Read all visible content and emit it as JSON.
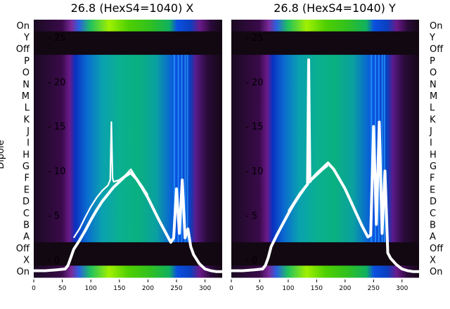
{
  "chart_data": [
    {
      "type": "heatmap",
      "title": "26.8 (HexS4=1040) X",
      "ylabel": "Dipole",
      "xlim": [
        0,
        330
      ],
      "x_ticks": [
        0,
        50,
        100,
        150,
        200,
        250,
        300
      ],
      "y_categories": [
        "On",
        "Y",
        "Off",
        "P",
        "O",
        "N",
        "M",
        "L",
        "K",
        "J",
        "I",
        "H",
        "G",
        "F",
        "E",
        "D",
        "C",
        "B",
        "A",
        "Off",
        "X",
        "On"
      ],
      "overlay_ticks": [
        "- 25",
        "- 20",
        "- 15",
        "- 10",
        "- 5",
        "- 0"
      ],
      "overlay_range": [
        -1,
        27
      ],
      "colormap": "nipy_spectral-like (black→purple→blue→green)",
      "profile_series": [
        {
          "x": [
            0,
            20,
            40,
            55,
            60,
            65,
            70,
            80,
            90,
            100,
            110,
            120,
            130,
            135,
            140,
            150,
            160,
            170,
            180,
            190,
            200,
            210,
            220,
            230,
            240,
            245,
            250,
            255,
            260,
            265,
            270,
            275,
            280,
            290,
            300,
            310,
            320,
            330
          ],
          "y": [
            -1.2,
            -1.2,
            -1.1,
            -1.0,
            -0.6,
            0.3,
            1.2,
            2.2,
            3.3,
            4.5,
            5.6,
            6.6,
            7.4,
            7.8,
            8.2,
            8.8,
            9.4,
            9.8,
            9.1,
            8.1,
            7.0,
            5.7,
            4.4,
            3.2,
            2.0,
            2.5,
            8.0,
            3.0,
            9.0,
            2.5,
            3.5,
            1.5,
            0.6,
            -0.4,
            -1.0,
            -1.2,
            -1.3,
            -1.3
          ]
        },
        {
          "x": [
            70,
            80,
            90,
            100,
            110,
            120,
            130,
            134,
            136,
            138,
            140,
            150,
            160,
            170,
            180,
            190,
            200
          ],
          "y": [
            2.5,
            3.5,
            4.8,
            6.0,
            7.0,
            7.8,
            8.4,
            9.0,
            15.5,
            9.2,
            8.8,
            9.0,
            9.5,
            10.2,
            9.2,
            8.3,
            7.3
          ]
        }
      ]
    },
    {
      "type": "heatmap",
      "title": "26.8 (HexS4=1040) Y",
      "xlim": [
        0,
        330
      ],
      "x_ticks": [
        0,
        50,
        100,
        150,
        200,
        250,
        300
      ],
      "y_categories": [
        "On",
        "Y",
        "Off",
        "P",
        "O",
        "N",
        "M",
        "L",
        "K",
        "J",
        "I",
        "H",
        "G",
        "F",
        "E",
        "D",
        "C",
        "B",
        "A",
        "Off",
        "X",
        "On"
      ],
      "overlay_ticks": [
        "- 25",
        "- 20",
        "- 15",
        "- 10",
        "- 5",
        "- 0"
      ],
      "overlay_range": [
        -1,
        27
      ],
      "colormap": "nipy_spectral-like (black→purple→blue→green)",
      "profile_series": [
        {
          "x": [
            0,
            20,
            40,
            55,
            60,
            65,
            70,
            80,
            90,
            100,
            110,
            120,
            130,
            134,
            136,
            138,
            140,
            150,
            160,
            170,
            180,
            190,
            200,
            210,
            220,
            230,
            240,
            245,
            250,
            255,
            260,
            265,
            270,
            275,
            280,
            290,
            300,
            310,
            320,
            330
          ],
          "y": [
            -1.2,
            -1.2,
            -1.1,
            -1.0,
            -0.6,
            0.3,
            1.5,
            2.8,
            4.0,
            5.2,
            6.3,
            7.3,
            8.2,
            8.5,
            22.5,
            8.8,
            9.0,
            9.7,
            10.3,
            10.9,
            10.2,
            9.1,
            8.0,
            6.6,
            5.2,
            3.8,
            2.6,
            2.8,
            15.0,
            4.0,
            15.5,
            3.0,
            10.0,
            0.8,
            0.2,
            -0.5,
            -1.0,
            -1.2,
            -1.3,
            -1.3
          ]
        },
        {
          "x": [
            100,
            110,
            120,
            130,
            140,
            150,
            160,
            170
          ],
          "y": [
            5.5,
            6.5,
            7.5,
            8.3,
            8.9,
            9.5,
            10.1,
            10.6
          ]
        }
      ]
    }
  ]
}
